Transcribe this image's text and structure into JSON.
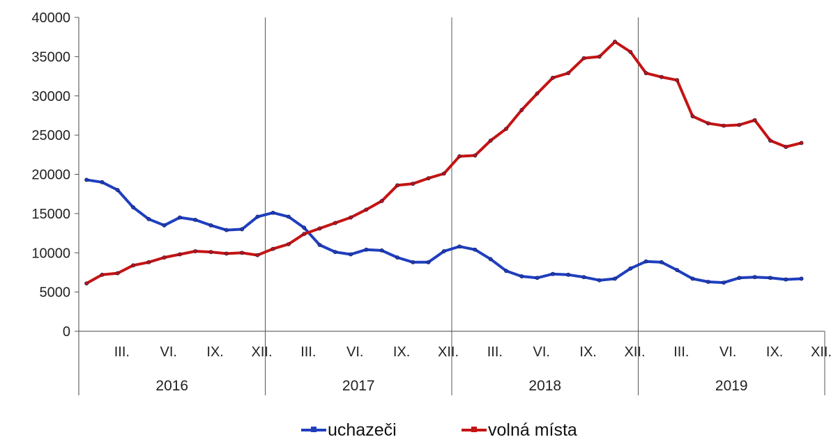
{
  "chart_data": {
    "type": "line",
    "ylim": [
      0,
      40000
    ],
    "yticks": [
      "40000",
      "35000",
      "30000",
      "25000",
      "20000",
      "15000",
      "10000",
      "5000",
      "0"
    ],
    "month_labels": [
      "III.",
      "VI.",
      "IX.",
      "XII.",
      "III.",
      "VI.",
      "IX.",
      "XII.",
      "III.",
      "VI.",
      "IX.",
      "XII.",
      "III.",
      "VI.",
      "IX.",
      "XII."
    ],
    "years": [
      "2016",
      "2017",
      "2018",
      "2019"
    ],
    "series": [
      {
        "name": "uchazeči",
        "color": "#1f3fbf",
        "values": [
          19300,
          19000,
          18000,
          15800,
          14300,
          13500,
          14500,
          14200,
          13500,
          12900,
          13000,
          14600,
          15100,
          14600,
          13200,
          11000,
          10100,
          9800,
          10400,
          10300,
          9400,
          8800,
          8800,
          10200,
          10800,
          10400,
          9200,
          7700,
          7000,
          6800,
          7300,
          7200,
          6900,
          6500,
          6700,
          8000,
          8900,
          8800,
          7800,
          6700,
          6300,
          6200,
          6800,
          6900,
          6800,
          6600,
          6700
        ]
      },
      {
        "name": "volná místa",
        "color": "#c41414",
        "values": [
          6100,
          7200,
          7400,
          8400,
          8800,
          9400,
          9800,
          10200,
          10100,
          9900,
          10000,
          9700,
          10500,
          11100,
          12400,
          13100,
          13800,
          14500,
          15500,
          16600,
          18600,
          18800,
          19500,
          20100,
          22300,
          22400,
          24300,
          25800,
          28200,
          30300,
          32300,
          32900,
          34800,
          35000,
          36900,
          35600,
          32900,
          32400,
          32000,
          27400,
          26500,
          26200,
          26300,
          26900,
          24300,
          23500,
          24000
        ]
      }
    ]
  }
}
